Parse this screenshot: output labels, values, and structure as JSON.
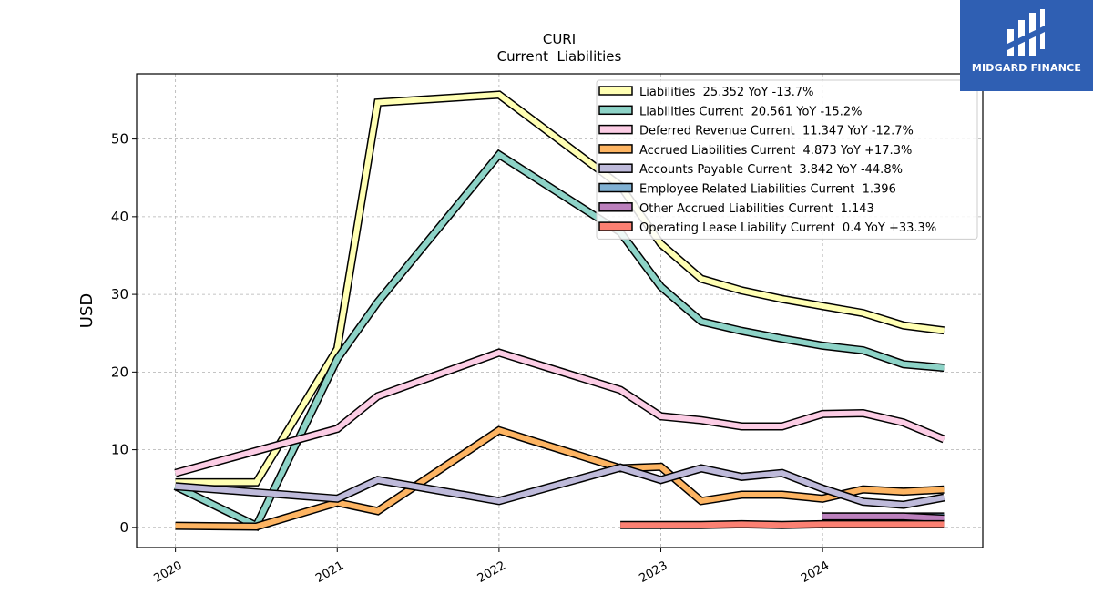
{
  "logo": {
    "text": "MIDGARD FINANCE"
  },
  "chart_data": {
    "type": "line",
    "title": "CURI",
    "subtitle": "Current  Liabilities",
    "ylabel": "USD",
    "xlabel": "",
    "xlim": [
      2019.76,
      2024.99
    ],
    "ylim": [
      -2.6,
      58.4
    ],
    "yticks": [
      0,
      10,
      20,
      30,
      40,
      50
    ],
    "xticks": [
      2020,
      2021,
      2022,
      2023,
      2024
    ],
    "xtick_labels": [
      "2020",
      "2021",
      "2022",
      "2023",
      "2024"
    ],
    "grid": true,
    "legend_position": "top-right",
    "series": [
      {
        "name": "Liabilities  25.352 YoY -13.7%",
        "color": "#ffffb3",
        "x": [
          2020.0,
          2020.5,
          2021.0,
          2021.25,
          2022.0,
          2022.75,
          2023.0,
          2023.25,
          2023.5,
          2023.75,
          2024.0,
          2024.25,
          2024.5,
          2024.75
        ],
        "y": [
          5.8,
          5.8,
          23.0,
          54.7,
          55.7,
          44.0,
          36.5,
          32.0,
          30.5,
          29.4,
          28.5,
          27.6,
          26.0,
          25.35
        ]
      },
      {
        "name": "Liabilities Current  20.561 YoY -15.2%",
        "color": "#8dd3c7",
        "x": [
          2020.0,
          2020.5,
          2021.0,
          2021.25,
          2022.0,
          2022.75,
          2023.0,
          2023.25,
          2023.5,
          2023.75,
          2024.0,
          2024.25,
          2024.5,
          2024.75
        ],
        "y": [
          5.3,
          0.2,
          21.7,
          29.0,
          48.0,
          38.0,
          31.0,
          26.5,
          25.3,
          24.3,
          23.4,
          22.8,
          21.0,
          20.56
        ]
      },
      {
        "name": "Deferred Revenue Current  11.347 YoY -12.7%",
        "color": "#fccde5",
        "x": [
          2020.0,
          2021.0,
          2021.25,
          2022.0,
          2022.75,
          2023.0,
          2023.25,
          2023.5,
          2023.75,
          2024.0,
          2024.25,
          2024.5,
          2024.75
        ],
        "y": [
          7.0,
          12.7,
          16.9,
          22.5,
          17.7,
          14.3,
          13.8,
          13.0,
          13.0,
          14.6,
          14.7,
          13.5,
          11.35
        ]
      },
      {
        "name": "Accrued Liabilities Current  4.873 YoY +17.3%",
        "color": "#fdb462",
        "x": [
          2020.0,
          2020.5,
          2021.0,
          2021.25,
          2022.0,
          2022.75,
          2023.0,
          2023.25,
          2023.5,
          2023.75,
          2024.0,
          2024.25,
          2024.5,
          2024.75
        ],
        "y": [
          0.2,
          0.1,
          3.2,
          2.1,
          12.5,
          7.6,
          7.8,
          3.4,
          4.2,
          4.2,
          3.7,
          4.9,
          4.6,
          4.87
        ]
      },
      {
        "name": "Accounts Payable Current  3.842 YoY -44.8%",
        "color": "#bebada",
        "x": [
          2020.0,
          2021.0,
          2021.25,
          2022.0,
          2022.75,
          2023.0,
          2023.25,
          2023.5,
          2023.75,
          2024.0,
          2024.25,
          2024.5,
          2024.75
        ],
        "y": [
          5.3,
          3.7,
          6.1,
          3.4,
          7.7,
          6.1,
          7.6,
          6.5,
          7.0,
          5.0,
          3.3,
          2.9,
          3.84
        ]
      },
      {
        "name": "Employee Related Liabilities Current  1.396",
        "color": "#80b1d3",
        "x": [
          2024.0,
          2024.25,
          2024.5,
          2024.75
        ],
        "y": [
          1.4,
          1.4,
          1.4,
          1.396
        ]
      },
      {
        "name": "Other Accrued Liabilities Current  1.143",
        "color": "#bc80bd",
        "x": [
          2024.0,
          2024.25,
          2024.5,
          2024.75
        ],
        "y": [
          1.4,
          1.4,
          1.4,
          1.143
        ]
      },
      {
        "name": "Operating Lease Liability Current  0.4 YoY +33.3%",
        "color": "#fb8072",
        "x": [
          2022.75,
          2023.0,
          2023.25,
          2023.5,
          2023.75,
          2024.0,
          2024.25,
          2024.5,
          2024.75
        ],
        "y": [
          0.3,
          0.3,
          0.3,
          0.4,
          0.3,
          0.4,
          0.4,
          0.4,
          0.4
        ]
      }
    ]
  }
}
